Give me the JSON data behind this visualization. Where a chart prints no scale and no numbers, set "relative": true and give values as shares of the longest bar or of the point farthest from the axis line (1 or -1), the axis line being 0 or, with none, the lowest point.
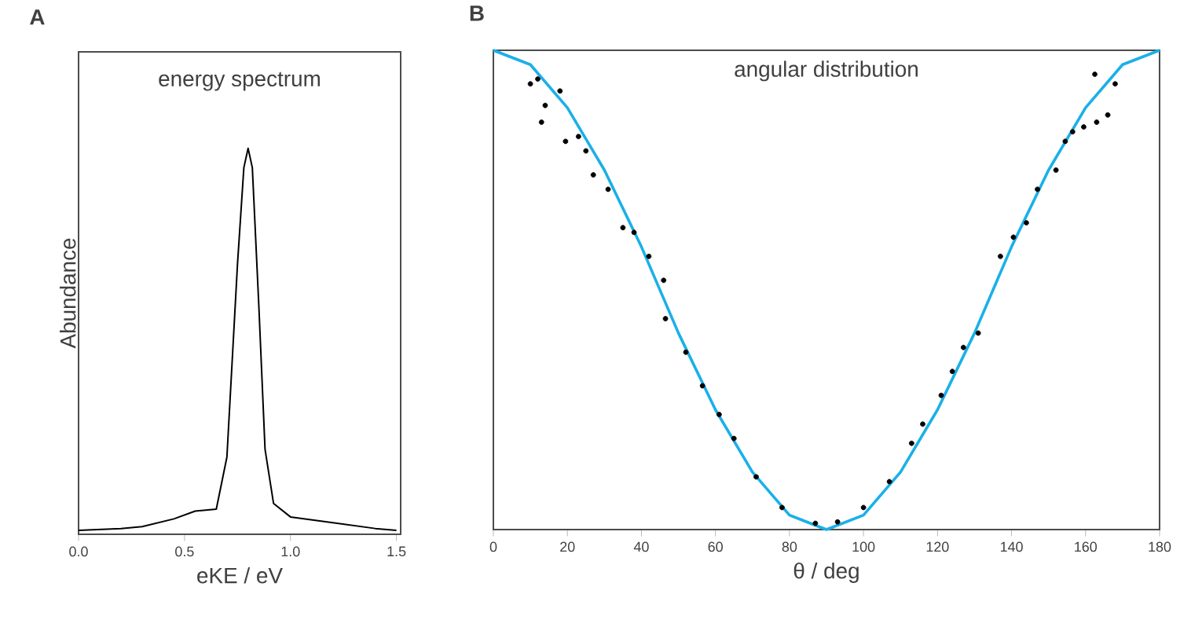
{
  "chart_data": [
    {
      "type": "line",
      "title": "energy spectrum",
      "xlabel": "eKE / eV",
      "ylabel": "Abundance",
      "relative": true,
      "annotations": [
        "A"
      ],
      "xlim": [
        0,
        1.52
      ],
      "xticks": [
        {
          "value": 0,
          "label": "0.0"
        },
        0.5,
        {
          "value": 1,
          "label": "1.0"
        },
        1.5
      ],
      "grid": false,
      "marker": "none",
      "line_style": "solid",
      "series": [
        {
          "color": "#000000",
          "x": [
            0,
            0.2,
            0.3,
            0.45,
            0.55,
            0.65,
            0.7,
            0.75,
            0.78,
            0.8,
            0.82,
            0.85,
            0.88,
            0.92,
            1.0,
            1.2,
            1.4,
            1.5
          ],
          "values": [
            0.01,
            0.015,
            0.02,
            0.04,
            0.06,
            0.065,
            0.2,
            0.7,
            0.95,
            1.0,
            0.95,
            0.6,
            0.22,
            0.08,
            0.045,
            0.03,
            0.015,
            0.01
          ]
        }
      ]
    },
    {
      "type": "scatter",
      "title": "angular distribution",
      "xlabel": "θ / deg",
      "relative": true,
      "annotations": [
        "B"
      ],
      "xlim": [
        0,
        180
      ],
      "xticks": [
        0,
        20,
        40,
        60,
        80,
        100,
        120,
        140,
        160,
        180
      ],
      "grid": false,
      "marker": "circle",
      "series": [
        {
          "type": "scatter",
          "color": "#000000",
          "x": [
            10,
            12,
            13,
            14,
            18,
            19.5,
            23,
            25,
            27,
            31,
            35,
            38,
            42,
            46,
            46.5,
            52,
            56.5,
            61,
            65,
            71,
            78,
            87,
            93,
            100,
            107,
            113,
            116,
            121,
            124,
            127,
            131,
            137,
            140.5,
            144,
            147,
            152,
            154.5,
            156.5,
            159.5,
            163,
            166,
            162.5,
            168
          ],
          "values": [
            0.93,
            0.94,
            0.85,
            0.885,
            0.915,
            0.81,
            0.82,
            0.79,
            0.74,
            0.71,
            0.63,
            0.62,
            0.57,
            0.52,
            0.44,
            0.37,
            0.3,
            0.24,
            0.19,
            0.11,
            0.046,
            0.013,
            0.016,
            0.046,
            0.1,
            0.18,
            0.22,
            0.28,
            0.33,
            0.38,
            0.41,
            0.57,
            0.61,
            0.64,
            0.71,
            0.75,
            0.81,
            0.83,
            0.84,
            0.85,
            0.865,
            0.95,
            0.93
          ]
        },
        {
          "type": "line",
          "marker": "none",
          "color": "#1ab0e8",
          "x": [
            0,
            10,
            20,
            30,
            40,
            50,
            60,
            70,
            80,
            90,
            100,
            110,
            120,
            130,
            140,
            150,
            160,
            170,
            180
          ],
          "values": [
            1,
            0.97,
            0.88,
            0.75,
            0.59,
            0.41,
            0.25,
            0.12,
            0.03,
            0,
            0.03,
            0.12,
            0.25,
            0.41,
            0.59,
            0.75,
            0.88,
            0.97,
            1
          ]
        }
      ]
    }
  ]
}
